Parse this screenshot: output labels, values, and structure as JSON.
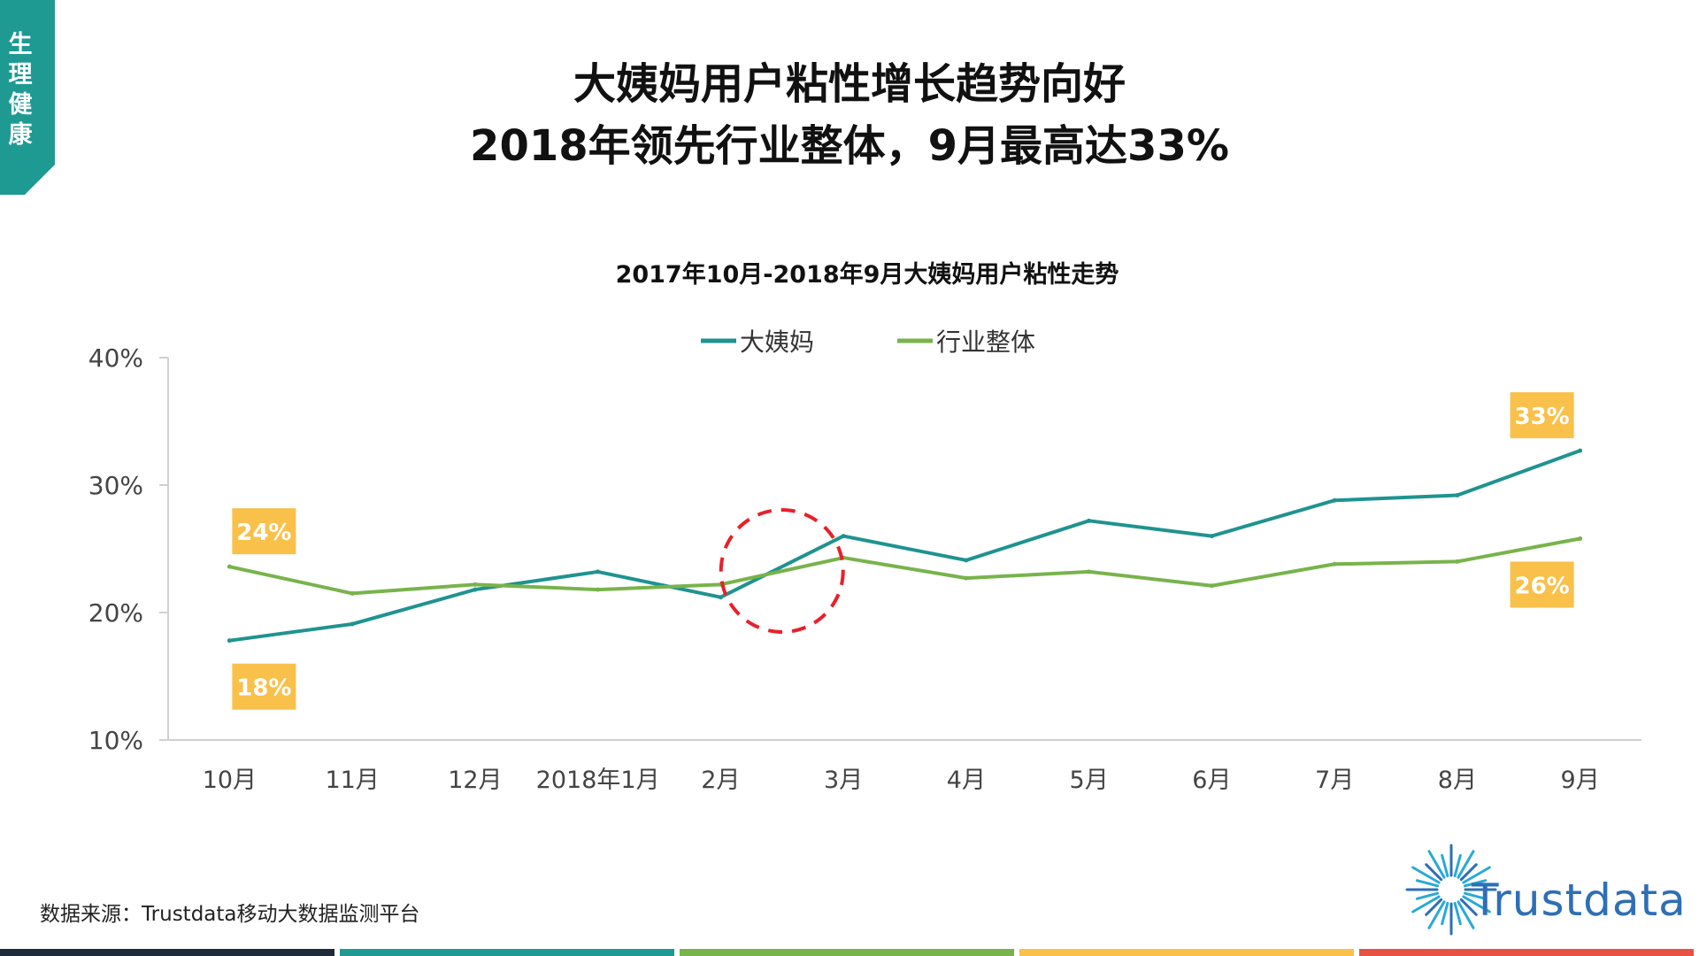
{
  "side_tag": {
    "label": "生理健康",
    "color": "#1e9a93"
  },
  "header": {
    "title_line1": "大姨妈用户粘性增长趋势向好",
    "title_line2": "2018年领先行业整体，9月最高达33%"
  },
  "chart_data": {
    "type": "line",
    "title": "2017年10月-2018年9月大姨妈用户粘性走势",
    "categories": [
      "10月",
      "11月",
      "12月",
      "2018年1月",
      "2月",
      "3月",
      "4月",
      "5月",
      "6月",
      "7月",
      "8月",
      "9月"
    ],
    "series": [
      {
        "name": "大姨妈",
        "color": "#1f9390",
        "values": [
          17.8,
          19.1,
          21.8,
          23.2,
          21.2,
          26.0,
          24.1,
          27.2,
          26.0,
          28.8,
          29.2,
          32.7
        ]
      },
      {
        "name": "行业整体",
        "color": "#78b34b",
        "values": [
          23.6,
          21.5,
          22.2,
          21.8,
          22.2,
          24.3,
          22.7,
          23.2,
          22.1,
          23.8,
          24.0,
          25.8
        ]
      }
    ],
    "y_ticks": [
      "10%",
      "20%",
      "30%",
      "40%"
    ],
    "ylim": [
      10,
      40
    ],
    "legend_position": "top-center",
    "grid": false,
    "annotations": [
      {
        "text": "24%",
        "category_index": 0,
        "series": "行业整体",
        "placement": "above"
      },
      {
        "text": "18%",
        "category_index": 0,
        "series": "大姨妈",
        "placement": "below"
      },
      {
        "text": "33%",
        "category_index": 11,
        "series": "大姨妈",
        "placement": "above"
      },
      {
        "text": "26%",
        "category_index": 11,
        "series": "行业整体",
        "placement": "below"
      }
    ],
    "annotation_color": "#f9c04a",
    "highlight": {
      "shape": "dashed-circle",
      "between_categories": [
        4,
        5
      ],
      "color": "#e8202a"
    }
  },
  "footer": {
    "source": "数据来源：Trustdata移动大数据监测平台",
    "logo_text": "Trustdata",
    "bar_colors": [
      "#1d2b3a",
      "#1e9a93",
      "#78b34b",
      "#f9c04a",
      "#e85242"
    ]
  }
}
